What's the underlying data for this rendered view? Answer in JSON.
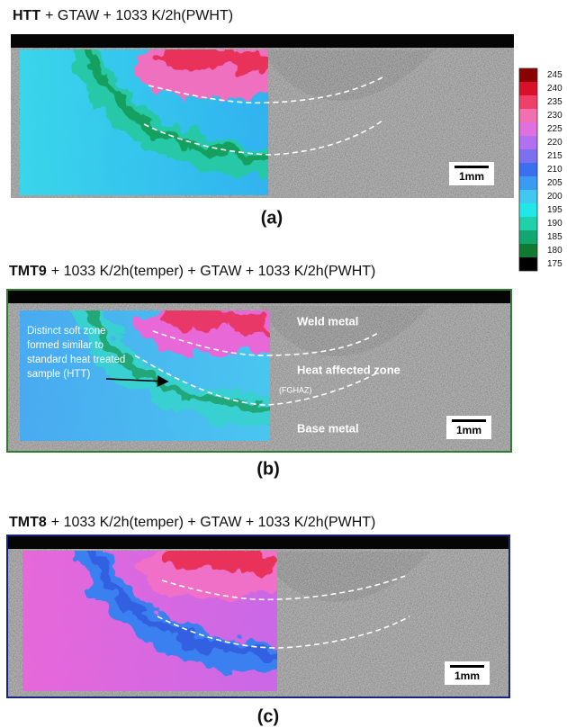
{
  "panels": [
    {
      "title_bold": "HTT",
      "title_rest": "+ GTAW + 1033 K/2h(PWHT)",
      "label": "(a)",
      "scale_bar": "1mm"
    },
    {
      "title_bold": "TMT9",
      "title_rest": "+ 1033 K/2h(temper) + GTAW + 1033 K/2h(PWHT)",
      "label": "(b)",
      "scale_bar": "1mm",
      "annotations": {
        "weld_metal": "Weld metal",
        "haz": "Heat affected zone",
        "fghaz": "(FGHAZ)",
        "base_metal": "Base metal",
        "soft_zone": [
          "Distinct soft zone",
          "formed similar to",
          "standard heat treated",
          "sample (HTT)"
        ]
      }
    },
    {
      "title_bold": "TMT8",
      "title_rest": "+ 1033 K/2h(temper) + GTAW + 1033 K/2h(PWHT)",
      "label": "(c)",
      "scale_bar": "1mm"
    }
  ],
  "colorbar": [
    {
      "label": 245,
      "color": "#8b0000"
    },
    {
      "label": 240,
      "color": "#d8102a"
    },
    {
      "label": 235,
      "color": "#f0406a"
    },
    {
      "label": 230,
      "color": "#f070b0"
    },
    {
      "label": 225,
      "color": "#e070e0"
    },
    {
      "label": 220,
      "color": "#b070f0"
    },
    {
      "label": 215,
      "color": "#7a70f0"
    },
    {
      "label": 210,
      "color": "#3c6ef0"
    },
    {
      "label": 205,
      "color": "#3a9cf0"
    },
    {
      "label": 200,
      "color": "#40c8f0"
    },
    {
      "label": 195,
      "color": "#20e8e8"
    },
    {
      "label": 190,
      "color": "#20d0a8"
    },
    {
      "label": 185,
      "color": "#10a870"
    },
    {
      "label": 180,
      "color": "#107a30"
    },
    {
      "label": 175,
      "color": "#000000"
    }
  ]
}
